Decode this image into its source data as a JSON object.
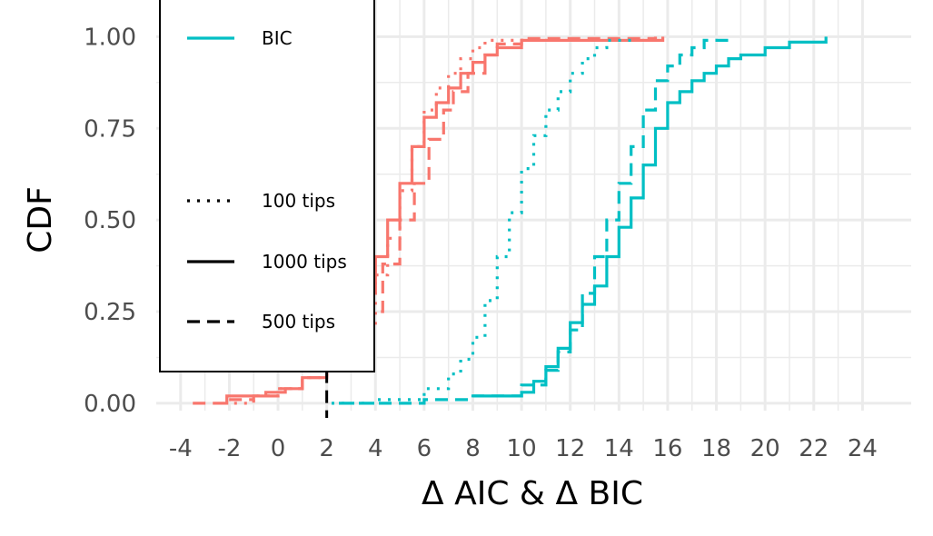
{
  "chart_data": {
    "type": "line",
    "title": "",
    "xlabel": "Δ AIC & Δ BIC",
    "ylabel": "CDF",
    "xlim": [
      -5,
      26
    ],
    "ylim": [
      -0.02,
      1.1
    ],
    "x_ticks": [
      -4,
      -2,
      0,
      2,
      4,
      6,
      8,
      10,
      12,
      14,
      16,
      18,
      20,
      22,
      24
    ],
    "x_tick_labels": [
      "-4",
      "-2",
      "0",
      "2",
      "4",
      "6",
      "8",
      "10",
      "12",
      "14",
      "16",
      "18",
      "20",
      "22",
      "24"
    ],
    "y_ticks": [
      0,
      0.25,
      0.5,
      0.75,
      1.0
    ],
    "y_tick_labels": [
      "0.00",
      "0.25",
      "0.50",
      "0.75",
      "1.00"
    ],
    "grid": true,
    "reference_line": {
      "x": 2,
      "style": "dashed",
      "color": "#000000"
    },
    "colors": {
      "AIC": "#F8766D",
      "BIC": "#00BFC4"
    },
    "legend": {
      "placement": "left",
      "items": [
        {
          "label": "BIC",
          "color": "#00BFC4",
          "linetype": "solid"
        },
        {
          "label": "100 tips",
          "color": "#000000",
          "linetype": "dotted"
        },
        {
          "label": "1000 tips",
          "color": "#000000",
          "linetype": "solid"
        },
        {
          "label": "500 tips",
          "color": "#000000",
          "linetype": "dashed"
        }
      ]
    },
    "series": [
      {
        "criterion": "AIC",
        "tips": "100 tips",
        "color": "#F8766D",
        "linetype": "dotted",
        "points": [
          [
            -1.8,
            0
          ],
          [
            -1,
            0.02
          ],
          [
            0,
            0.04
          ],
          [
            1,
            0.07
          ],
          [
            2,
            0.1
          ],
          [
            3,
            0.2
          ],
          [
            4,
            0.35
          ],
          [
            4.5,
            0.45
          ],
          [
            5,
            0.58
          ],
          [
            5.5,
            0.7
          ],
          [
            6,
            0.8
          ],
          [
            6.5,
            0.86
          ],
          [
            7,
            0.9
          ],
          [
            7.5,
            0.94
          ],
          [
            8,
            0.97
          ],
          [
            8.5,
            0.99
          ],
          [
            10.5,
            1.0
          ]
        ]
      },
      {
        "criterion": "AIC",
        "tips": "1000 tips",
        "color": "#F8766D",
        "linetype": "solid",
        "points": [
          [
            -2.2,
            0
          ],
          [
            -2.1,
            0.02
          ],
          [
            -1,
            0.02
          ],
          [
            -0.5,
            0.03
          ],
          [
            0.3,
            0.04
          ],
          [
            1,
            0.07
          ],
          [
            2,
            0.1
          ],
          [
            3,
            0.2
          ],
          [
            3.5,
            0.3
          ],
          [
            4,
            0.4
          ],
          [
            4.5,
            0.5
          ],
          [
            5,
            0.6
          ],
          [
            5.5,
            0.7
          ],
          [
            6,
            0.78
          ],
          [
            6.5,
            0.82
          ],
          [
            7,
            0.86
          ],
          [
            7.5,
            0.9
          ],
          [
            8,
            0.93
          ],
          [
            8.5,
            0.95
          ],
          [
            9,
            0.97
          ],
          [
            10,
            0.99
          ],
          [
            15.8,
            1.0
          ]
        ]
      },
      {
        "criterion": "AIC",
        "tips": "500 tips",
        "color": "#F8766D",
        "linetype": "dashed",
        "points": [
          [
            -3.5,
            0
          ],
          [
            -2.2,
            0.01
          ],
          [
            -1,
            0.02
          ],
          [
            0,
            0.04
          ],
          [
            1,
            0.07
          ],
          [
            2,
            0.1
          ],
          [
            3,
            0.18
          ],
          [
            3.8,
            0.25
          ],
          [
            4.3,
            0.38
          ],
          [
            5,
            0.5
          ],
          [
            5.6,
            0.6
          ],
          [
            6.2,
            0.72
          ],
          [
            6.8,
            0.8
          ],
          [
            7.2,
            0.85
          ],
          [
            7.8,
            0.9
          ],
          [
            8.5,
            0.95
          ],
          [
            9,
            0.98
          ],
          [
            10,
            0.995
          ],
          [
            15.5,
            1.0
          ]
        ]
      },
      {
        "criterion": "BIC",
        "tips": "100 tips",
        "color": "#00BFC4",
        "linetype": "dotted",
        "points": [
          [
            2.2,
            0
          ],
          [
            4,
            0.01
          ],
          [
            6,
            0.04
          ],
          [
            7,
            0.08
          ],
          [
            7.5,
            0.12
          ],
          [
            8,
            0.18
          ],
          [
            8.5,
            0.28
          ],
          [
            9,
            0.4
          ],
          [
            9.5,
            0.52
          ],
          [
            10,
            0.64
          ],
          [
            10.5,
            0.73
          ],
          [
            11,
            0.8
          ],
          [
            11.5,
            0.85
          ],
          [
            12,
            0.9
          ],
          [
            12.5,
            0.94
          ],
          [
            13,
            0.97
          ],
          [
            13.5,
            0.99
          ],
          [
            14.5,
            1.0
          ]
        ]
      },
      {
        "criterion": "BIC",
        "tips": "1000 tips",
        "color": "#00BFC4",
        "linetype": "solid",
        "points": [
          [
            8,
            0.02
          ],
          [
            10,
            0.03
          ],
          [
            10.5,
            0.06
          ],
          [
            11,
            0.1
          ],
          [
            11.5,
            0.15
          ],
          [
            12,
            0.22
          ],
          [
            12.5,
            0.27
          ],
          [
            13,
            0.32
          ],
          [
            13.5,
            0.4
          ],
          [
            14,
            0.48
          ],
          [
            14.5,
            0.56
          ],
          [
            15,
            0.65
          ],
          [
            15.5,
            0.75
          ],
          [
            16,
            0.82
          ],
          [
            16.5,
            0.85
          ],
          [
            17,
            0.88
          ],
          [
            17.5,
            0.9
          ],
          [
            18,
            0.92
          ],
          [
            18.5,
            0.94
          ],
          [
            19,
            0.95
          ],
          [
            20,
            0.97
          ],
          [
            21,
            0.985
          ],
          [
            22.5,
            1.0
          ]
        ]
      },
      {
        "criterion": "BIC",
        "tips": "500 tips",
        "color": "#00BFC4",
        "linetype": "dashed",
        "points": [
          [
            2.5,
            0
          ],
          [
            6,
            0.01
          ],
          [
            8,
            0.02
          ],
          [
            10,
            0.05
          ],
          [
            11,
            0.09
          ],
          [
            11.5,
            0.14
          ],
          [
            12,
            0.2
          ],
          [
            12.5,
            0.3
          ],
          [
            13,
            0.4
          ],
          [
            13.5,
            0.5
          ],
          [
            14,
            0.6
          ],
          [
            14.5,
            0.7
          ],
          [
            15,
            0.8
          ],
          [
            15.5,
            0.88
          ],
          [
            16,
            0.92
          ],
          [
            16.5,
            0.95
          ],
          [
            17,
            0.97
          ],
          [
            17.5,
            0.99
          ],
          [
            18.5,
            1.0
          ]
        ]
      }
    ]
  }
}
